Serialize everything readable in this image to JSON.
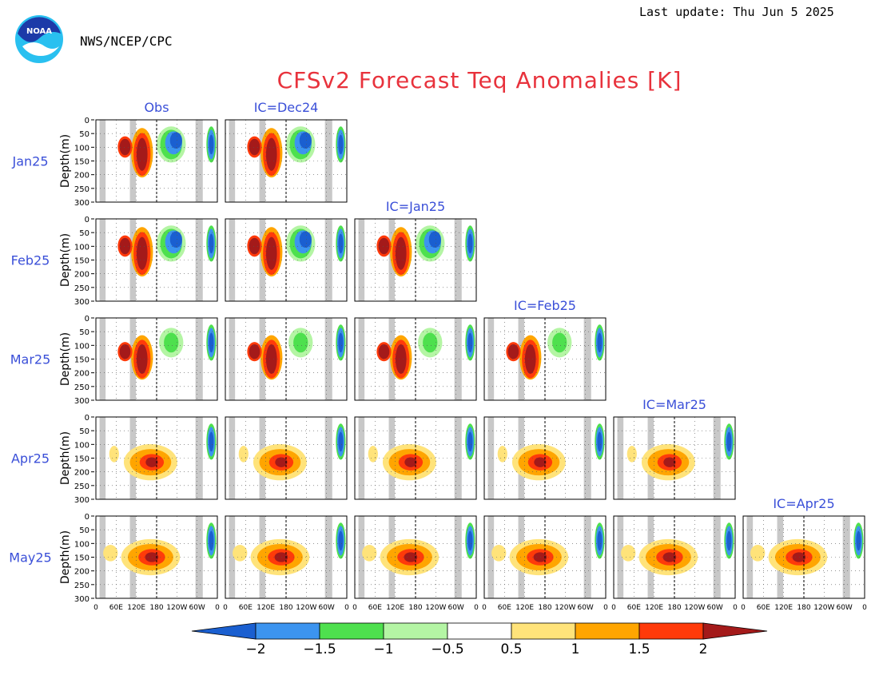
{
  "header": {
    "last_update": "Last update: Thu Jun  5 2025",
    "organization": "NWS/NCEP/CPC",
    "logo_text": "NOAA",
    "title": "CFSv2 Forecast Teq Anomalies [K]"
  },
  "colors": {
    "title": "#e8323c",
    "label_blue": "#3a4fd8",
    "bins": [
      "#1a5fd0",
      "#3c94ef",
      "#4ee04e",
      "#b4f5a4",
      "#ffffff",
      "#ffe37a",
      "#ffa500",
      "#ff3a0a",
      "#a41a1a"
    ],
    "land_mask": "#c8c8c8"
  },
  "chart_data": {
    "type": "heatmap",
    "title": "CFSv2 Forecast Teq Anomalies [K]",
    "ylabel": "Depth(m)",
    "y_ticks": [
      "0",
      "50",
      "100",
      "150",
      "200",
      "250",
      "300"
    ],
    "ylim": [
      300,
      0
    ],
    "x_ticks": [
      "0",
      "60E",
      "120E",
      "180",
      "120W",
      "60W",
      "0"
    ],
    "rows": [
      "Jan25",
      "Feb25",
      "Mar25",
      "Apr25",
      "May25"
    ],
    "column_titles": [
      "Obs",
      "IC=Dec24",
      "IC=Jan25",
      "IC=Feb25",
      "IC=Mar25",
      "IC=Apr25"
    ],
    "panel_rows": [
      {
        "target": "Jan25",
        "panels": [
          "Obs",
          "IC=Dec24"
        ]
      },
      {
        "target": "Feb25",
        "panels": [
          "Obs",
          "IC=Dec24",
          "IC=Jan25"
        ]
      },
      {
        "target": "Mar25",
        "panels": [
          "Obs",
          "IC=Dec24",
          "IC=Jan25",
          "IC=Feb25"
        ]
      },
      {
        "target": "Apr25",
        "panels": [
          "Obs",
          "IC=Dec24",
          "IC=Jan25",
          "IC=Feb25",
          "IC=Mar25"
        ]
      },
      {
        "target": "May25",
        "panels": [
          "Obs",
          "IC=Dec24",
          "IC=Jan25",
          "IC=Feb25",
          "IC=Mar25",
          "IC=Apr25"
        ]
      }
    ],
    "colorbar": {
      "levels": [
        "−2",
        "−1.5",
        "−1",
        "−0.5",
        "0.5",
        "1",
        "1.5",
        "2"
      ],
      "bins": [
        {
          "range": "< -2",
          "color": "#1a5fd0"
        },
        {
          "range": "-2 to -1.5",
          "color": "#3c94ef"
        },
        {
          "range": "-1.5 to -1",
          "color": "#4ee04e"
        },
        {
          "range": "-1 to -0.5",
          "color": "#b4f5a4"
        },
        {
          "range": "-0.5 to 0.5",
          "color": "#ffffff"
        },
        {
          "range": "0.5 to 1",
          "color": "#ffe37a"
        },
        {
          "range": "1 to 1.5",
          "color": "#ffa500"
        },
        {
          "range": "1.5 to 2",
          "color": "#ff3a0a"
        },
        {
          "range": "> 2",
          "color": "#a41a1a"
        }
      ]
    }
  }
}
